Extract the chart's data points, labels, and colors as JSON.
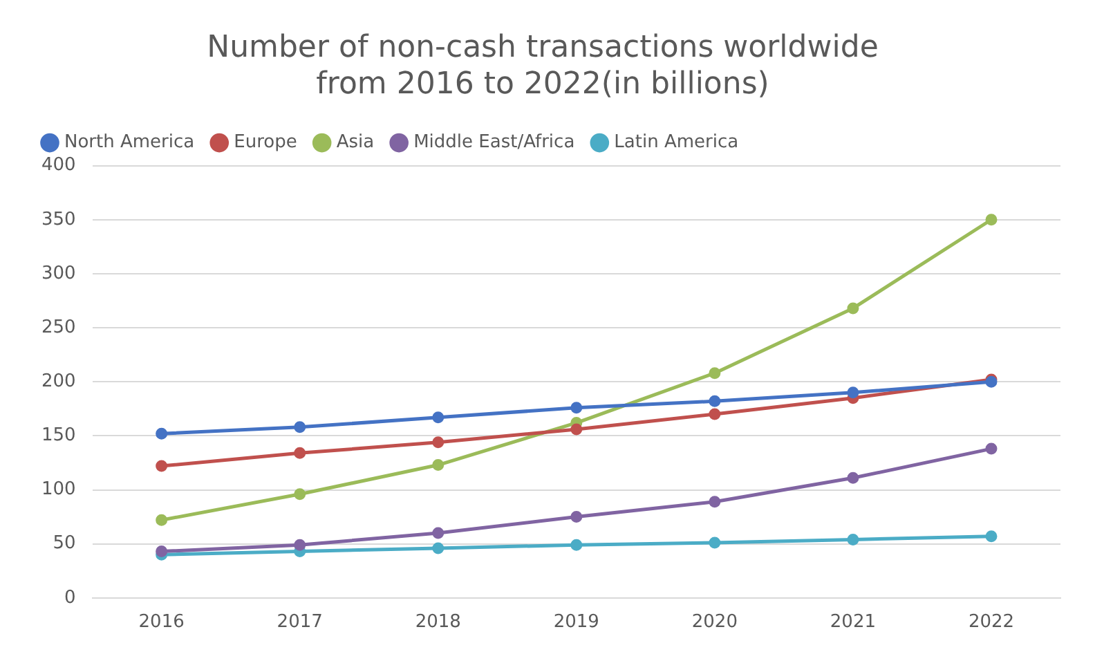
{
  "chart_data": {
    "type": "line",
    "title": "Number of non-cash transactions worldwide from 2016 to 2022(in billions)",
    "categories": [
      "2016",
      "2017",
      "2018",
      "2019",
      "2020",
      "2021",
      "2022"
    ],
    "series": [
      {
        "name": "North America",
        "color": "#4472c4",
        "values": [
          152,
          158,
          167,
          176,
          182,
          190,
          200
        ]
      },
      {
        "name": "Europe",
        "color": "#c0504d",
        "values": [
          122,
          134,
          144,
          156,
          170,
          185,
          202
        ]
      },
      {
        "name": "Asia",
        "color": "#9bbb59",
        "values": [
          72,
          96,
          123,
          162,
          208,
          268,
          350
        ]
      },
      {
        "name": "Middle East/Africa",
        "color": "#8064a2",
        "values": [
          43,
          49,
          60,
          75,
          89,
          111,
          138
        ]
      },
      {
        "name": "Latin America",
        "color": "#4bacc6",
        "values": [
          40,
          43,
          46,
          49,
          51,
          54,
          57
        ]
      }
    ],
    "ylim": [
      0,
      400
    ],
    "yticks": [
      0,
      50,
      100,
      150,
      200,
      250,
      300,
      350,
      400
    ],
    "grid": "y",
    "legend": "top",
    "marker": "circle",
    "line_style": "solid"
  }
}
